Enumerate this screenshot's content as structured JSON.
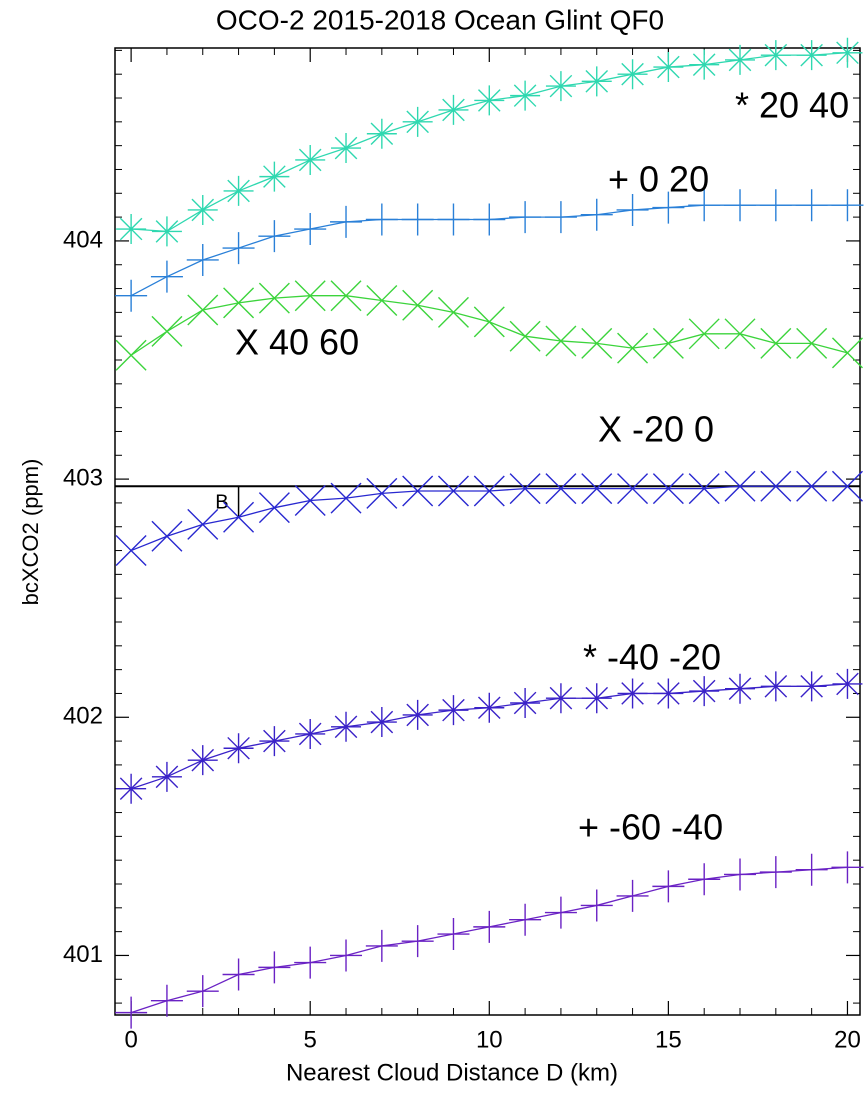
{
  "chart_data": {
    "type": "line",
    "title": "OCO-2 2015-2018 Ocean Glint QF0",
    "xlabel": "Nearest Cloud Distance D (km)",
    "ylabel": "bcXCO2 (ppm)",
    "x": [
      0,
      1,
      2,
      3,
      4,
      5,
      6,
      7,
      8,
      9,
      10,
      11,
      12,
      13,
      14,
      15,
      16,
      17,
      18,
      19,
      20
    ],
    "xlim": [
      -0.45,
      20.35
    ],
    "ylim": [
      400.75,
      404.81
    ],
    "xticks": [
      0,
      5,
      10,
      15,
      20
    ],
    "yticks": [
      401,
      402,
      403,
      404
    ],
    "xminorticks": [
      1,
      2,
      3,
      4,
      6,
      7,
      8,
      9,
      11,
      12,
      13,
      14,
      16,
      17,
      18,
      19
    ],
    "yminorticks": [
      400.8,
      400.9,
      401.1,
      401.2,
      401.3,
      401.4,
      401.5,
      401.6,
      401.7,
      401.8,
      401.9,
      402.1,
      402.2,
      402.3,
      402.4,
      402.5,
      402.6,
      402.7,
      402.8,
      402.9,
      403.1,
      403.2,
      403.3,
      403.4,
      403.5,
      403.6,
      403.7,
      403.8,
      403.9,
      404.1,
      404.2,
      404.3,
      404.4,
      404.5,
      404.6,
      404.7,
      404.8
    ],
    "series": [
      {
        "name": "* 20 40",
        "marker": "asterisk",
        "color": "#2fd8b0",
        "values": [
          404.05,
          404.04,
          404.13,
          404.21,
          404.27,
          404.34,
          404.39,
          404.45,
          404.5,
          404.55,
          404.59,
          404.61,
          404.65,
          404.67,
          404.7,
          404.73,
          404.74,
          404.76,
          404.78,
          404.78,
          404.79
        ]
      },
      {
        "name": "+ 0 20",
        "marker": "plus",
        "color": "#2a80d8",
        "values": [
          403.77,
          403.85,
          403.92,
          403.97,
          404.02,
          404.05,
          404.08,
          404.09,
          404.09,
          404.09,
          404.09,
          404.1,
          404.1,
          404.11,
          404.13,
          404.14,
          404.15,
          404.15,
          404.15,
          404.15,
          404.15
        ]
      },
      {
        "name": "X 40 60",
        "marker": "x",
        "color": "#3cd43c",
        "values": [
          403.52,
          403.62,
          403.71,
          403.74,
          403.76,
          403.77,
          403.77,
          403.75,
          403.73,
          403.7,
          403.66,
          403.6,
          403.58,
          403.57,
          403.55,
          403.57,
          403.61,
          403.61,
          403.57,
          403.57,
          403.53
        ]
      },
      {
        "name": "X -20 0",
        "marker": "x",
        "color": "#2828d0",
        "values": [
          402.7,
          402.76,
          402.81,
          402.84,
          402.88,
          402.91,
          402.92,
          402.94,
          402.95,
          402.95,
          402.95,
          402.96,
          402.96,
          402.96,
          402.96,
          402.96,
          402.96,
          402.97,
          402.97,
          402.97,
          402.97
        ]
      },
      {
        "name": "* -40 -20",
        "marker": "asterisk",
        "color": "#3a22c8",
        "values": [
          401.7,
          401.75,
          401.82,
          401.87,
          401.9,
          401.93,
          401.96,
          401.98,
          402.01,
          402.03,
          402.04,
          402.06,
          402.08,
          402.08,
          402.1,
          402.1,
          402.11,
          402.12,
          402.13,
          402.13,
          402.14
        ]
      },
      {
        "name": "+ -60 -40",
        "marker": "plus",
        "color": "#6a22c4",
        "values": [
          400.76,
          400.81,
          400.85,
          400.92,
          400.95,
          400.97,
          401.0,
          401.04,
          401.06,
          401.09,
          401.12,
          401.15,
          401.18,
          401.21,
          401.25,
          401.29,
          401.32,
          401.34,
          401.35,
          401.36,
          401.37
        ]
      }
    ],
    "reference_line": {
      "y": 402.97,
      "x": 3,
      "label": "B"
    }
  }
}
